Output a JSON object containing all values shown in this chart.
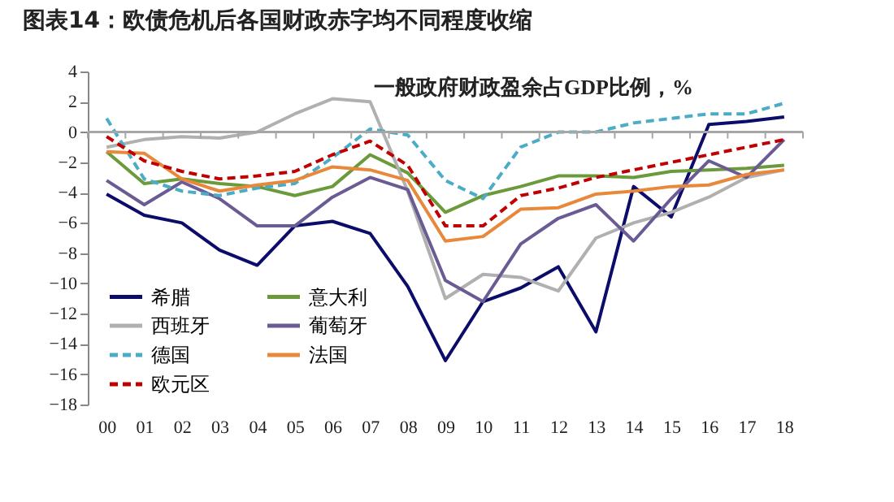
{
  "chart_data": {
    "type": "line",
    "title": "图表14：欧债危机后各国财政赤字均不同程度收缩",
    "subtitle": "一般政府财政盈余占GDP比例，%",
    "categories": [
      "00",
      "01",
      "02",
      "03",
      "04",
      "05",
      "06",
      "07",
      "08",
      "09",
      "10",
      "11",
      "12",
      "13",
      "14",
      "15",
      "16",
      "17",
      "18"
    ],
    "ylim": [
      -18,
      4
    ],
    "yticks": [
      -18,
      -16,
      -14,
      -12,
      -10,
      -8,
      -6,
      -4,
      -2,
      0,
      2,
      4
    ],
    "grid": false,
    "legend": "bottom left",
    "line_style": "solid",
    "ref_lines": [
      {
        "axis": "y",
        "value": 0,
        "color": "#a6a6a6"
      }
    ],
    "series": [
      {
        "name": "希腊",
        "color": "#0c0c6b",
        "values": [
          -4.1,
          -5.5,
          -6.0,
          -7.8,
          -8.8,
          -6.2,
          -5.9,
          -6.7,
          -10.2,
          -15.1,
          -11.2,
          -10.3,
          -8.9,
          -13.2,
          -3.6,
          -5.6,
          0.5,
          0.7,
          1.0
        ]
      },
      {
        "name": "意大利",
        "color": "#6a9a3a",
        "values": [
          -1.3,
          -3.4,
          -3.1,
          -3.4,
          -3.6,
          -4.2,
          -3.6,
          -1.5,
          -2.7,
          -5.3,
          -4.2,
          -3.6,
          -2.9,
          -2.9,
          -3.0,
          -2.6,
          -2.5,
          -2.4,
          -2.2
        ]
      },
      {
        "name": "西班牙",
        "color": "#b0b0b0",
        "values": [
          -1.0,
          -0.5,
          -0.3,
          -0.4,
          0.0,
          1.2,
          2.2,
          2.0,
          -3.9,
          -11.0,
          -9.4,
          -9.6,
          -10.5,
          -7.0,
          -6.0,
          -5.3,
          -4.3,
          -3.0,
          -2.5
        ]
      },
      {
        "name": "葡萄牙",
        "color": "#6b5b95",
        "values": [
          -3.2,
          -4.8,
          -3.3,
          -4.4,
          -6.2,
          -6.2,
          -4.3,
          -3.0,
          -3.8,
          -9.8,
          -11.2,
          -7.4,
          -5.7,
          -4.8,
          -7.2,
          -4.4,
          -1.9,
          -3.0,
          -0.5
        ]
      },
      {
        "name": "德国",
        "color": "#4bacc6",
        "line_style": "dashed",
        "values": [
          0.9,
          -3.1,
          -3.9,
          -4.2,
          -3.7,
          -3.4,
          -1.7,
          0.2,
          -0.2,
          -3.2,
          -4.4,
          -1.0,
          0.0,
          0.0,
          0.6,
          0.9,
          1.2,
          1.2,
          1.9
        ]
      },
      {
        "name": "法国",
        "color": "#e8883a",
        "values": [
          -1.3,
          -1.4,
          -3.1,
          -3.9,
          -3.5,
          -3.2,
          -2.3,
          -2.5,
          -3.2,
          -7.2,
          -6.9,
          -5.1,
          -5.0,
          -4.1,
          -3.9,
          -3.6,
          -3.5,
          -2.8,
          -2.5
        ]
      },
      {
        "name": "欧元区",
        "color": "#c00000",
        "line_style": "dashed",
        "values": [
          -0.3,
          -1.9,
          -2.6,
          -3.1,
          -2.9,
          -2.6,
          -1.5,
          -0.6,
          -2.2,
          -6.2,
          -6.2,
          -4.2,
          -3.7,
          -3.0,
          -2.5,
          -2.0,
          -1.5,
          -1.0,
          -0.5
        ]
      }
    ]
  }
}
